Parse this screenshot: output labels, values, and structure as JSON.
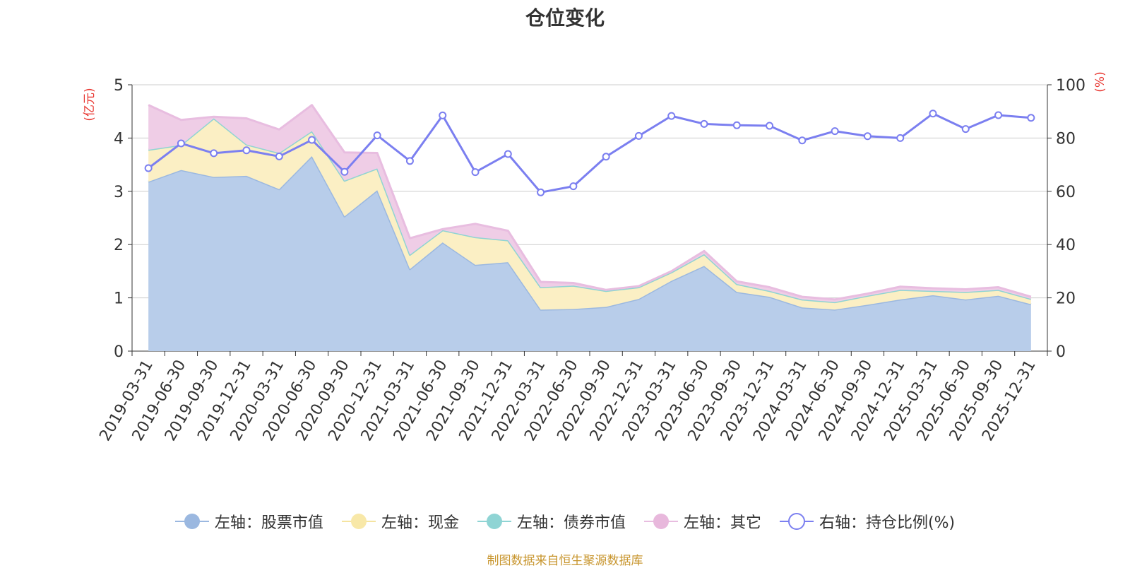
{
  "chart_data": {
    "type": "area",
    "title": "仓位变化",
    "left_axis_unit": "(亿元)",
    "right_axis_unit": "(%)",
    "ylim_left": [
      0,
      5
    ],
    "ylim_right": [
      0,
      100
    ],
    "yticks_left": [
      "0",
      "1",
      "2",
      "3",
      "4",
      "5"
    ],
    "yticks_right": [
      "0",
      "20",
      "40",
      "60",
      "80",
      "100"
    ],
    "categories": [
      "2019-03-31",
      "2019-06-30",
      "2019-09-30",
      "2019-12-31",
      "2020-03-31",
      "2020-06-30",
      "2020-09-30",
      "2020-12-31",
      "2021-03-31",
      "2021-06-30",
      "2021-09-30",
      "2021-12-31",
      "2022-03-31",
      "2022-06-30",
      "2022-09-30",
      "2022-12-31",
      "2023-03-31",
      "2023-06-30",
      "2023-09-30",
      "2023-12-31",
      "2024-03-31",
      "2024-06-30",
      "2024-09-30",
      "2024-12-31",
      "2025-03-31",
      "2025-06-30",
      "2025-09-30",
      "2025-12-31"
    ],
    "stacked_series": [
      {
        "name": "左轴：股票市值",
        "color": "#9bb8e0",
        "fill": "#b8cdea",
        "values": [
          3.18,
          3.4,
          3.27,
          3.29,
          3.04,
          3.66,
          2.53,
          3.02,
          1.54,
          2.04,
          1.62,
          1.67,
          0.78,
          0.79,
          0.83,
          0.98,
          1.32,
          1.6,
          1.11,
          1.02,
          0.82,
          0.78,
          0.87,
          0.97,
          1.05,
          0.97,
          1.04,
          0.88
        ]
      },
      {
        "name": "左轴：现金",
        "color": "#f5e4a0",
        "fill": "#fbefc4",
        "values": [
          0.6,
          0.47,
          1.1,
          0.59,
          0.68,
          0.47,
          0.67,
          0.41,
          0.27,
          0.23,
          0.52,
          0.41,
          0.42,
          0.44,
          0.3,
          0.22,
          0.16,
          0.22,
          0.15,
          0.11,
          0.15,
          0.14,
          0.17,
          0.18,
          0.08,
          0.14,
          0.11,
          0.1
        ]
      },
      {
        "name": "左轴：债券市值",
        "color": "#8fd4d4",
        "fill": "#b5e4e4",
        "values": [
          0,
          0,
          0,
          0,
          0,
          0,
          0,
          0,
          0,
          0,
          0,
          0,
          0,
          0,
          0,
          0,
          0,
          0,
          0,
          0,
          0,
          0,
          0,
          0,
          0,
          0,
          0,
          0
        ]
      },
      {
        "name": "左轴：其它",
        "color": "#e8bde0",
        "fill": "#efcde6",
        "values": [
          0.84,
          0.47,
          0.03,
          0.49,
          0.44,
          0.49,
          0.53,
          0.29,
          0.31,
          0.02,
          0.25,
          0.18,
          0.1,
          0.05,
          0.02,
          0.02,
          0.02,
          0.06,
          0.05,
          0.07,
          0.05,
          0.05,
          0.04,
          0.06,
          0.05,
          0.05,
          0.05,
          0.04
        ]
      }
    ],
    "line_series": {
      "name": "右轴：持仓比例(%)",
      "color": "#7b7ff0",
      "values": [
        68.7,
        78.0,
        74.3,
        75.4,
        73.1,
        79.3,
        67.3,
        81.0,
        71.4,
        88.5,
        67.2,
        74.0,
        59.6,
        61.9,
        73.0,
        80.8,
        88.3,
        85.3,
        84.8,
        84.6,
        79.1,
        82.6,
        80.7,
        80.0,
        89.2,
        83.4,
        88.6,
        87.6
      ]
    },
    "source": "制图数据来自恒生聚源数据库"
  }
}
